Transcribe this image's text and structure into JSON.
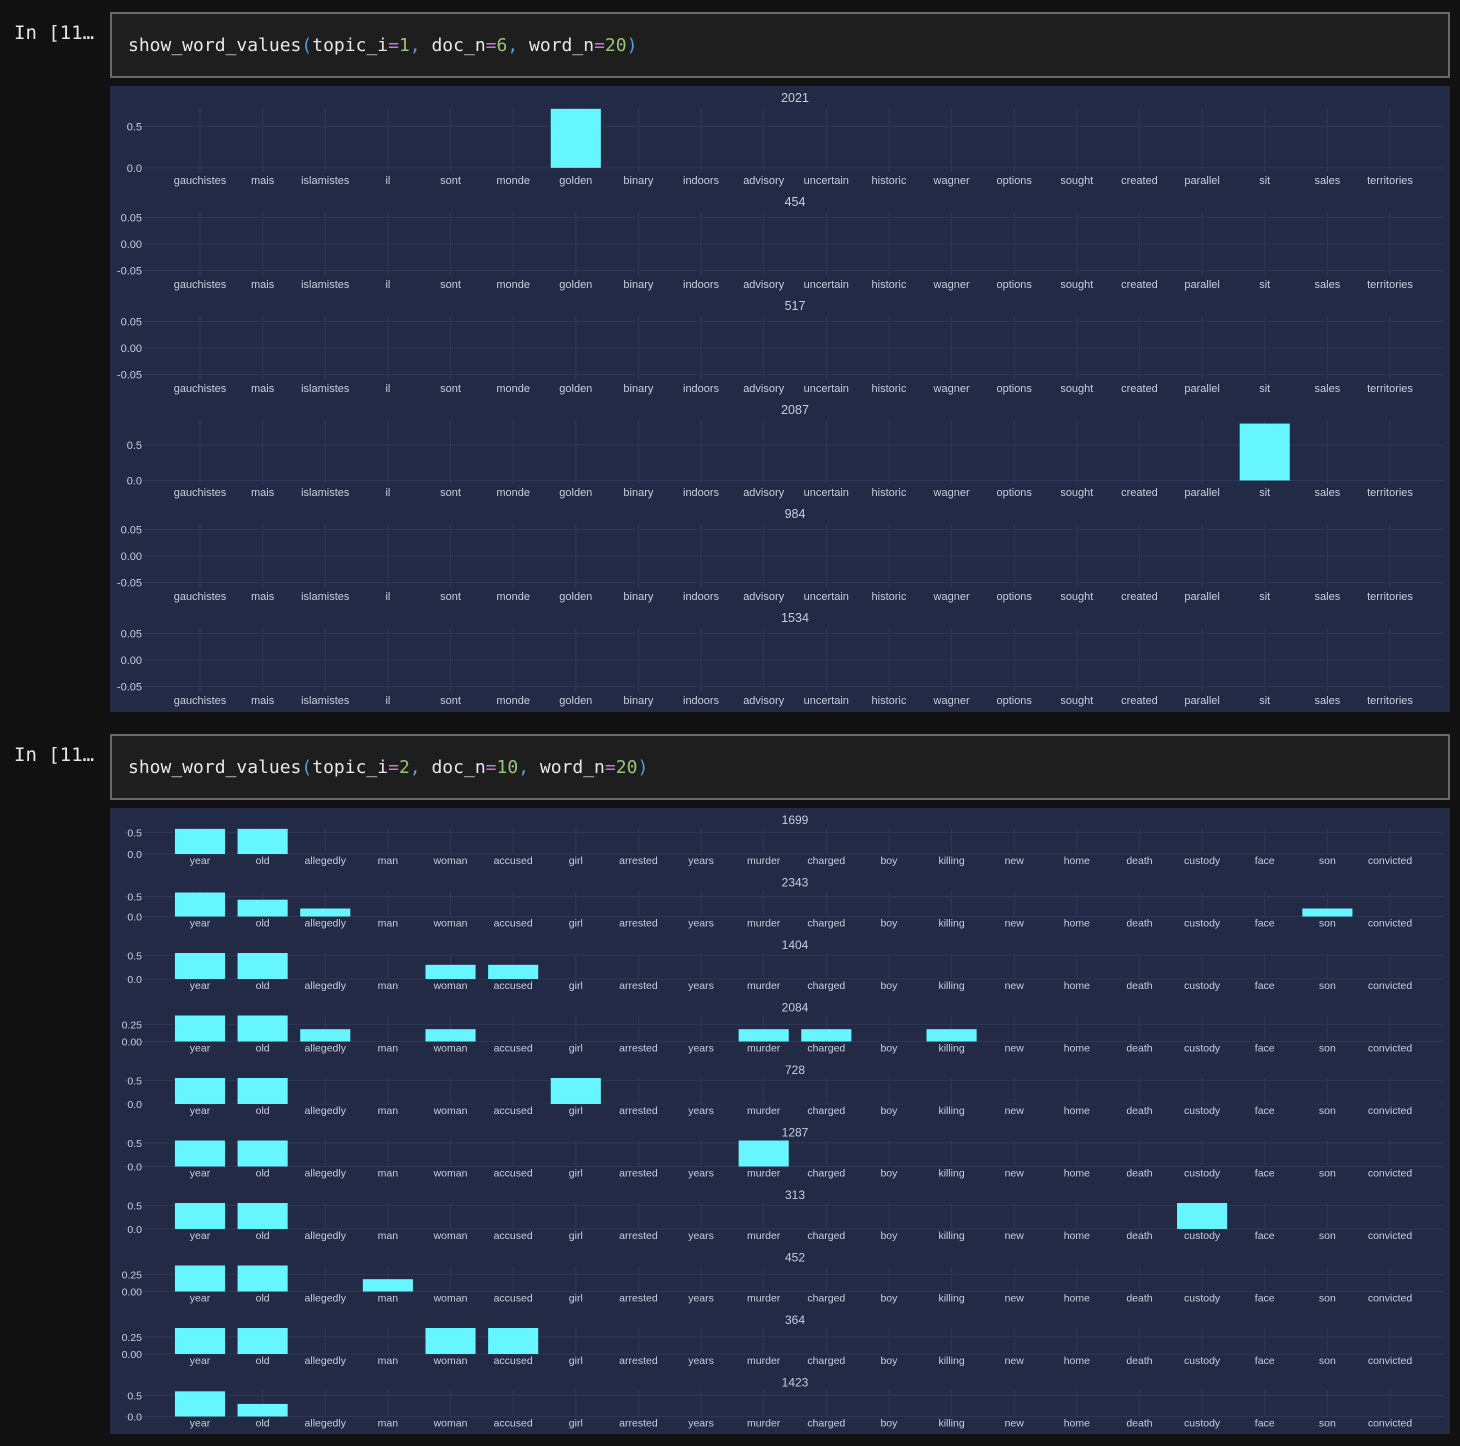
{
  "cells": [
    {
      "prompt": "In [11…",
      "code": {
        "func": "show_word_values",
        "args": [
          {
            "name": "topic_i",
            "value": "1"
          },
          {
            "name": "doc_n",
            "value": "6"
          },
          {
            "name": "word_n",
            "value": "20"
          }
        ]
      }
    },
    {
      "prompt": "In [11…",
      "code": {
        "func": "show_word_values",
        "args": [
          {
            "name": "topic_i",
            "value": "2"
          },
          {
            "name": "doc_n",
            "value": "10"
          },
          {
            "name": "word_n",
            "value": "20"
          }
        ]
      }
    }
  ],
  "colors": {
    "page_bg": "#111111",
    "code_bg": "#1e1e1e",
    "plot_bg": "#222a45",
    "bar": "#66f6ff",
    "grid": "#2e3757",
    "text": "#c9cede"
  },
  "chart_data": [
    {
      "type": "bar",
      "layout": "stacked-subplots",
      "categories": [
        "gauchistes",
        "mais",
        "islamistes",
        "il",
        "sont",
        "monde",
        "golden",
        "binary",
        "indoors",
        "advisory",
        "uncertain",
        "historic",
        "wagner",
        "options",
        "sought",
        "created",
        "parallel",
        "sit",
        "sales",
        "territories"
      ],
      "panels": [
        {
          "title": "2021",
          "ylim": [
            -0.05,
            0.72
          ],
          "yticks": [
            "0.5",
            "0.0"
          ],
          "tick_values": [
            0.5,
            0.0
          ],
          "values": [
            0,
            0,
            0,
            0,
            0,
            0,
            0.71,
            0,
            0,
            0,
            0,
            0,
            0,
            0,
            0,
            0,
            0,
            0,
            0,
            0
          ]
        },
        {
          "title": "454",
          "ylim": [
            -0.06,
            0.06
          ],
          "yticks": [
            "0.05",
            "0.00",
            "-0.05"
          ],
          "tick_values": [
            0.05,
            0.0,
            -0.05
          ],
          "values": [
            0,
            0,
            0,
            0,
            0,
            0,
            0,
            0,
            0,
            0,
            0,
            0,
            0,
            0,
            0,
            0,
            0,
            0,
            0,
            0
          ]
        },
        {
          "title": "517",
          "ylim": [
            -0.06,
            0.06
          ],
          "yticks": [
            "0.05",
            "0.00",
            "-0.05"
          ],
          "tick_values": [
            0.05,
            0.0,
            -0.05
          ],
          "values": [
            0,
            0,
            0,
            0,
            0,
            0,
            0,
            0,
            0,
            0,
            0,
            0,
            0,
            0,
            0,
            0,
            0,
            0,
            0,
            0
          ]
        },
        {
          "title": "2087",
          "ylim": [
            -0.05,
            0.85
          ],
          "yticks": [
            "0.5",
            "0.0"
          ],
          "tick_values": [
            0.5,
            0.0
          ],
          "values": [
            0,
            0,
            0,
            0,
            0,
            0,
            0,
            0,
            0,
            0,
            0,
            0,
            0,
            0,
            0,
            0,
            0,
            0.8,
            0,
            0
          ]
        },
        {
          "title": "984",
          "ylim": [
            -0.06,
            0.06
          ],
          "yticks": [
            "0.05",
            "0.00",
            "-0.05"
          ],
          "tick_values": [
            0.05,
            0.0,
            -0.05
          ],
          "values": [
            0,
            0,
            0,
            0,
            0,
            0,
            0,
            0,
            0,
            0,
            0,
            0,
            0,
            0,
            0,
            0,
            0,
            0,
            0,
            0
          ]
        },
        {
          "title": "1534",
          "ylim": [
            -0.06,
            0.06
          ],
          "yticks": [
            "0.05",
            "0.00",
            "-0.05"
          ],
          "tick_values": [
            0.05,
            0.0,
            -0.05
          ],
          "values": [
            0,
            0,
            0,
            0,
            0,
            0,
            0,
            0,
            0,
            0,
            0,
            0,
            0,
            0,
            0,
            0,
            0,
            0,
            0,
            0
          ]
        }
      ]
    },
    {
      "type": "bar",
      "layout": "stacked-subplots",
      "categories": [
        "year",
        "old",
        "allegedly",
        "man",
        "woman",
        "accused",
        "girl",
        "arrested",
        "years",
        "murder",
        "charged",
        "boy",
        "killing",
        "new",
        "home",
        "death",
        "custody",
        "face",
        "son",
        "convicted"
      ],
      "panels": [
        {
          "title": "1699",
          "ylim": [
            0,
            0.6
          ],
          "yticks": [
            "0.5",
            "0.0"
          ],
          "tick_values": [
            0.5,
            0.0
          ],
          "values": [
            0.58,
            0.58,
            0,
            0,
            0,
            0,
            0,
            0,
            0,
            0,
            0,
            0,
            0,
            0,
            0,
            0,
            0,
            0,
            0,
            0
          ]
        },
        {
          "title": "2343",
          "ylim": [
            0,
            0.65
          ],
          "yticks": [
            "0.5",
            "0.0"
          ],
          "tick_values": [
            0.5,
            0.0
          ],
          "values": [
            0.6,
            0.42,
            0.2,
            0,
            0,
            0,
            0,
            0,
            0,
            0,
            0,
            0,
            0,
            0,
            0,
            0,
            0,
            0,
            0.2,
            0
          ]
        },
        {
          "title": "1404",
          "ylim": [
            0,
            0.55
          ],
          "yticks": [
            "0.5",
            "0.0"
          ],
          "tick_values": [
            0.5,
            0.0
          ],
          "values": [
            0.55,
            0.55,
            0,
            0,
            0.3,
            0.3,
            0,
            0,
            0,
            0,
            0,
            0,
            0,
            0,
            0,
            0,
            0,
            0,
            0,
            0
          ]
        },
        {
          "title": "2084",
          "ylim": [
            0,
            0.38
          ],
          "yticks": [
            "0.25",
            "0.00"
          ],
          "tick_values": [
            0.25,
            0.0
          ],
          "values": [
            0.38,
            0.38,
            0.18,
            0,
            0.18,
            0,
            0,
            0,
            0,
            0.18,
            0.18,
            0,
            0.18,
            0,
            0,
            0,
            0,
            0,
            0,
            0
          ]
        },
        {
          "title": "728",
          "ylim": [
            0,
            0.55
          ],
          "yticks": [
            "0.5",
            "0.0"
          ],
          "tick_values": [
            0.5,
            0.0
          ],
          "values": [
            0.55,
            0.55,
            0,
            0,
            0,
            0,
            0.55,
            0,
            0,
            0,
            0,
            0,
            0,
            0,
            0,
            0,
            0,
            0,
            0,
            0
          ]
        },
        {
          "title": "1287",
          "ylim": [
            0,
            0.55
          ],
          "yticks": [
            "0.5",
            "0.0"
          ],
          "tick_values": [
            0.5,
            0.0
          ],
          "values": [
            0.55,
            0.55,
            0,
            0,
            0,
            0,
            0,
            0,
            0,
            0.55,
            0,
            0,
            0,
            0,
            0,
            0,
            0,
            0,
            0,
            0
          ]
        },
        {
          "title": "313",
          "ylim": [
            0,
            0.55
          ],
          "yticks": [
            "0.5",
            "0.0"
          ],
          "tick_values": [
            0.5,
            0.0
          ],
          "values": [
            0.55,
            0.55,
            0,
            0,
            0,
            0,
            0,
            0,
            0,
            0,
            0,
            0,
            0,
            0,
            0,
            0,
            0.55,
            0,
            0,
            0
          ]
        },
        {
          "title": "452",
          "ylim": [
            0,
            0.38
          ],
          "yticks": [
            "0.25",
            "0.00"
          ],
          "tick_values": [
            0.25,
            0.0
          ],
          "values": [
            0.38,
            0.38,
            0,
            0.18,
            0,
            0,
            0,
            0,
            0,
            0,
            0,
            0,
            0,
            0,
            0,
            0,
            0,
            0,
            0,
            0
          ]
        },
        {
          "title": "364",
          "ylim": [
            0,
            0.38
          ],
          "yticks": [
            "0.25",
            "0.00"
          ],
          "tick_values": [
            0.25,
            0.0
          ],
          "values": [
            0.38,
            0.38,
            0,
            0,
            0.38,
            0.38,
            0,
            0,
            0,
            0,
            0,
            0,
            0,
            0,
            0,
            0,
            0,
            0,
            0,
            0
          ]
        },
        {
          "title": "1423",
          "ylim": [
            0,
            0.62
          ],
          "yticks": [
            "0.5",
            "0.0"
          ],
          "tick_values": [
            0.5,
            0.0
          ],
          "values": [
            0.6,
            0.3,
            0,
            0,
            0,
            0,
            0,
            0,
            0,
            0,
            0,
            0,
            0,
            0,
            0,
            0,
            0,
            0,
            0,
            0
          ]
        }
      ]
    }
  ]
}
